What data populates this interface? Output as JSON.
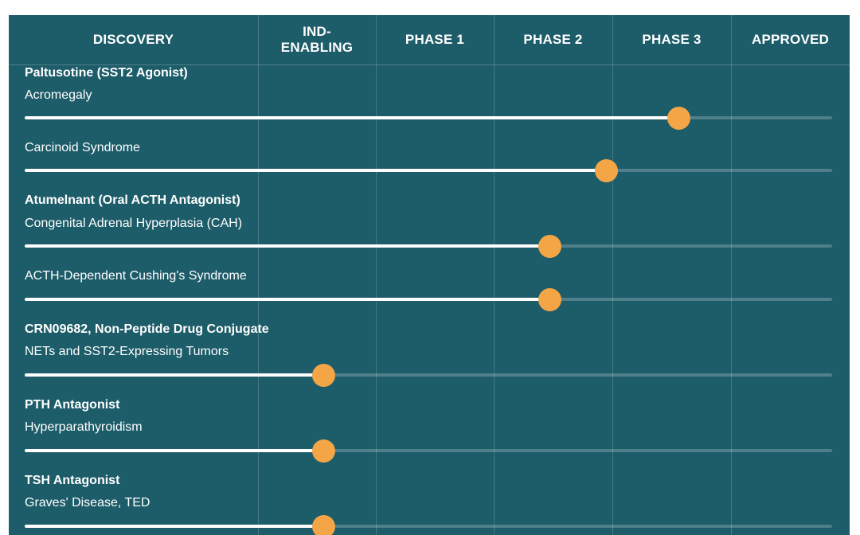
{
  "chart_data": {
    "type": "bar",
    "phases": [
      "DISCOVERY",
      "IND-\nENABLING",
      "PHASE 1",
      "PHASE 2",
      "PHASE 3",
      "APPROVED"
    ],
    "rows": [
      {
        "program": "Paltusotine (SST2 Agonist)",
        "indication": "Acromegaly",
        "progress": 0.81
      },
      {
        "program": "",
        "indication": "Carcinoid Syndrome",
        "progress": 0.72
      },
      {
        "program": "Atumelnant (Oral ACTH Antagonist)",
        "indication": "Congenital Adrenal Hyperplasia (CAH)",
        "progress": 0.65
      },
      {
        "program": "",
        "indication": "ACTH-Dependent Cushing's Syndrome",
        "progress": 0.65
      },
      {
        "program": "CRN09682, Non-Peptide Drug Conjugate",
        "indication": "NETs and SST2-Expressing Tumors",
        "progress": 0.37
      },
      {
        "program": "PTH Antagonist",
        "indication": "Hyperparathyroidism",
        "progress": 0.37
      },
      {
        "program": "TSH Antagonist",
        "indication": "Graves' Disease, TED",
        "progress": 0.37
      }
    ]
  },
  "colors": {
    "background": "#1d5c69",
    "bar_fill": "#ffffff",
    "marker": "#f4a546"
  }
}
